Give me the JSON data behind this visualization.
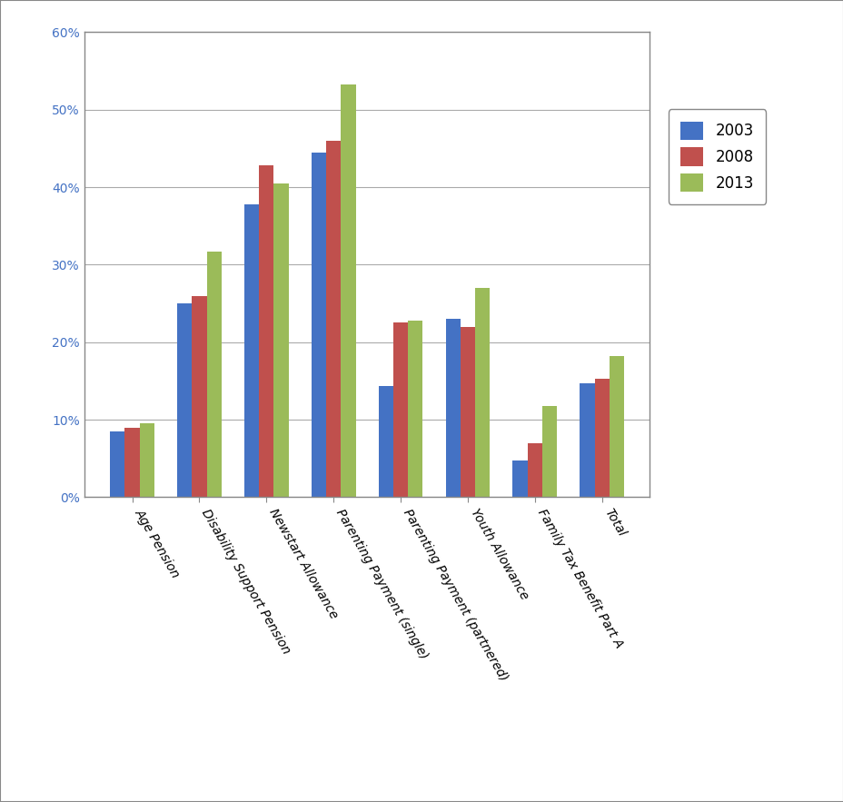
{
  "categories": [
    "Age Pension",
    "Disability Support Pension",
    "Newstart Allowance",
    "Parenting Payment (single)",
    "Parenting Payment (partnered)",
    "Youth Allowance",
    "Family Tax Benefit Part A",
    "Total"
  ],
  "series": {
    "2003": [
      8.5,
      25.0,
      37.8,
      44.5,
      14.3,
      23.0,
      4.7,
      14.7
    ],
    "2008": [
      9.0,
      26.0,
      42.8,
      46.0,
      22.5,
      22.0,
      7.0,
      15.3
    ],
    "2013": [
      9.6,
      31.7,
      40.5,
      53.2,
      22.8,
      27.0,
      11.8,
      18.2
    ]
  },
  "colors": {
    "2003": "#4472C4",
    "2008": "#C0504D",
    "2013": "#9BBB59"
  },
  "ylim": [
    0,
    60
  ],
  "yticks": [
    0,
    10,
    20,
    30,
    40,
    50,
    60
  ],
  "legend_labels": [
    "2003",
    "2008",
    "2013"
  ],
  "background_color": "#FFFFFF",
  "grid_color": "#AAAAAA",
  "bar_width": 0.22,
  "figsize": [
    9.29,
    8.83
  ],
  "dpi": 100,
  "outer_border_color": "#888888",
  "tick_label_fontsize": 10,
  "tick_label_style": "italic"
}
